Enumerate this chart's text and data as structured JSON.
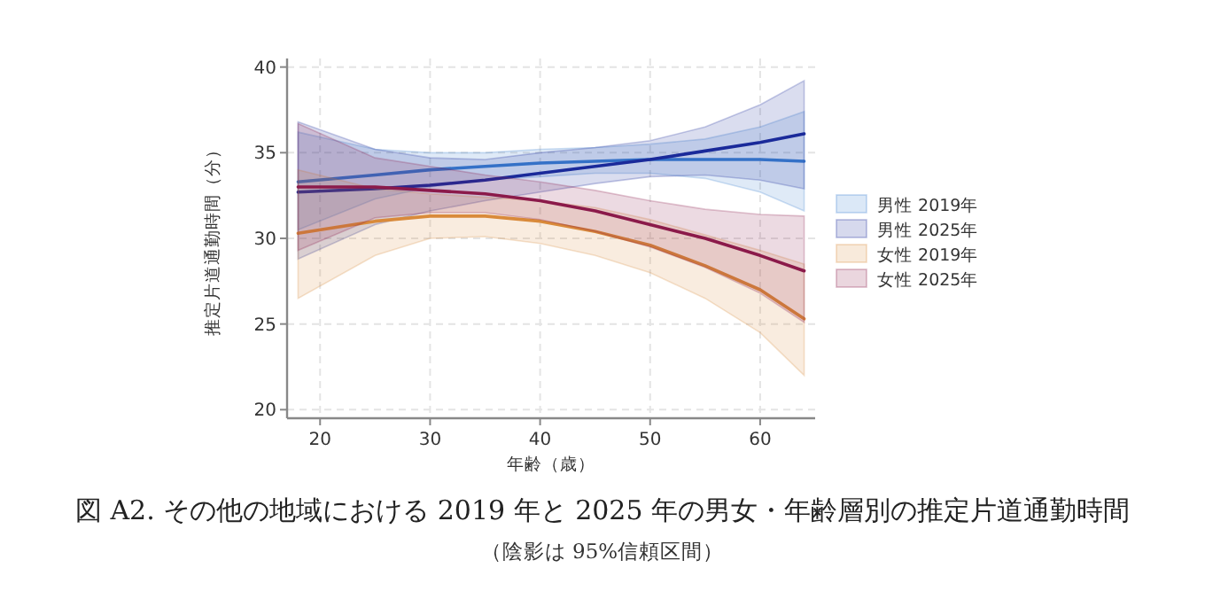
{
  "chart_data": {
    "type": "line",
    "title": "図 A2. その他の地域における 2019 年と 2025 年の男女・年齢層別の推定片道通勤時間",
    "subtitle": "（陰影は 95%信頼区間）",
    "xlabel": "年齢（歳）",
    "ylabel": "推定片道通勤時間（分）",
    "x": [
      18,
      25,
      30,
      35,
      40,
      45,
      50,
      55,
      60,
      64
    ],
    "series": [
      {
        "name": "男性 2019年",
        "color": "#3a7fd0",
        "values": [
          33.3,
          33.7,
          34.0,
          34.2,
          34.4,
          34.5,
          34.6,
          34.6,
          34.6,
          34.5
        ],
        "lower": [
          30.5,
          32.3,
          33.0,
          33.4,
          33.6,
          33.8,
          33.8,
          33.5,
          32.7,
          31.6
        ],
        "upper": [
          36.2,
          35.2,
          35.0,
          35.0,
          35.2,
          35.3,
          35.5,
          35.8,
          36.5,
          37.4
        ]
      },
      {
        "name": "男性 2025年",
        "color": "#1a2a9a",
        "values": [
          32.7,
          32.9,
          33.1,
          33.4,
          33.8,
          34.2,
          34.6,
          35.1,
          35.6,
          36.1
        ],
        "lower": [
          28.8,
          30.8,
          31.6,
          32.2,
          32.7,
          33.2,
          33.6,
          33.7,
          33.4,
          32.9
        ],
        "upper": [
          36.8,
          35.2,
          34.7,
          34.6,
          35.0,
          35.3,
          35.7,
          36.5,
          37.8,
          39.2
        ]
      },
      {
        "name": "女性 2019年",
        "color": "#d98a3a",
        "values": [
          30.3,
          31.0,
          31.3,
          31.3,
          31.0,
          30.4,
          29.6,
          28.4,
          27.0,
          25.3
        ],
        "lower": [
          26.5,
          29.0,
          30.0,
          30.1,
          29.7,
          29.0,
          28.0,
          26.5,
          24.5,
          22.0
        ],
        "upper": [
          34.0,
          32.9,
          32.6,
          32.4,
          32.2,
          31.8,
          31.1,
          30.2,
          29.3,
          28.5
        ]
      },
      {
        "name": "女性 2025年",
        "color": "#8b1a4a",
        "values": [
          33.0,
          33.0,
          32.8,
          32.6,
          32.2,
          31.6,
          30.8,
          30.0,
          29.0,
          28.1
        ],
        "lower": [
          29.3,
          31.2,
          31.5,
          31.5,
          31.1,
          30.4,
          29.5,
          28.3,
          26.8,
          25.1
        ],
        "upper": [
          36.7,
          34.7,
          34.2,
          33.7,
          33.3,
          32.8,
          32.2,
          31.7,
          31.4,
          31.3
        ]
      }
    ],
    "xlim": [
      17,
      65
    ],
    "ylim": [
      19.5,
      40.5
    ],
    "xticks": [
      20,
      30,
      40,
      50,
      60
    ],
    "yticks": [
      20,
      25,
      30,
      35,
      40
    ],
    "grid": true,
    "legend": "right",
    "marker": "none",
    "line_style": "solid"
  }
}
